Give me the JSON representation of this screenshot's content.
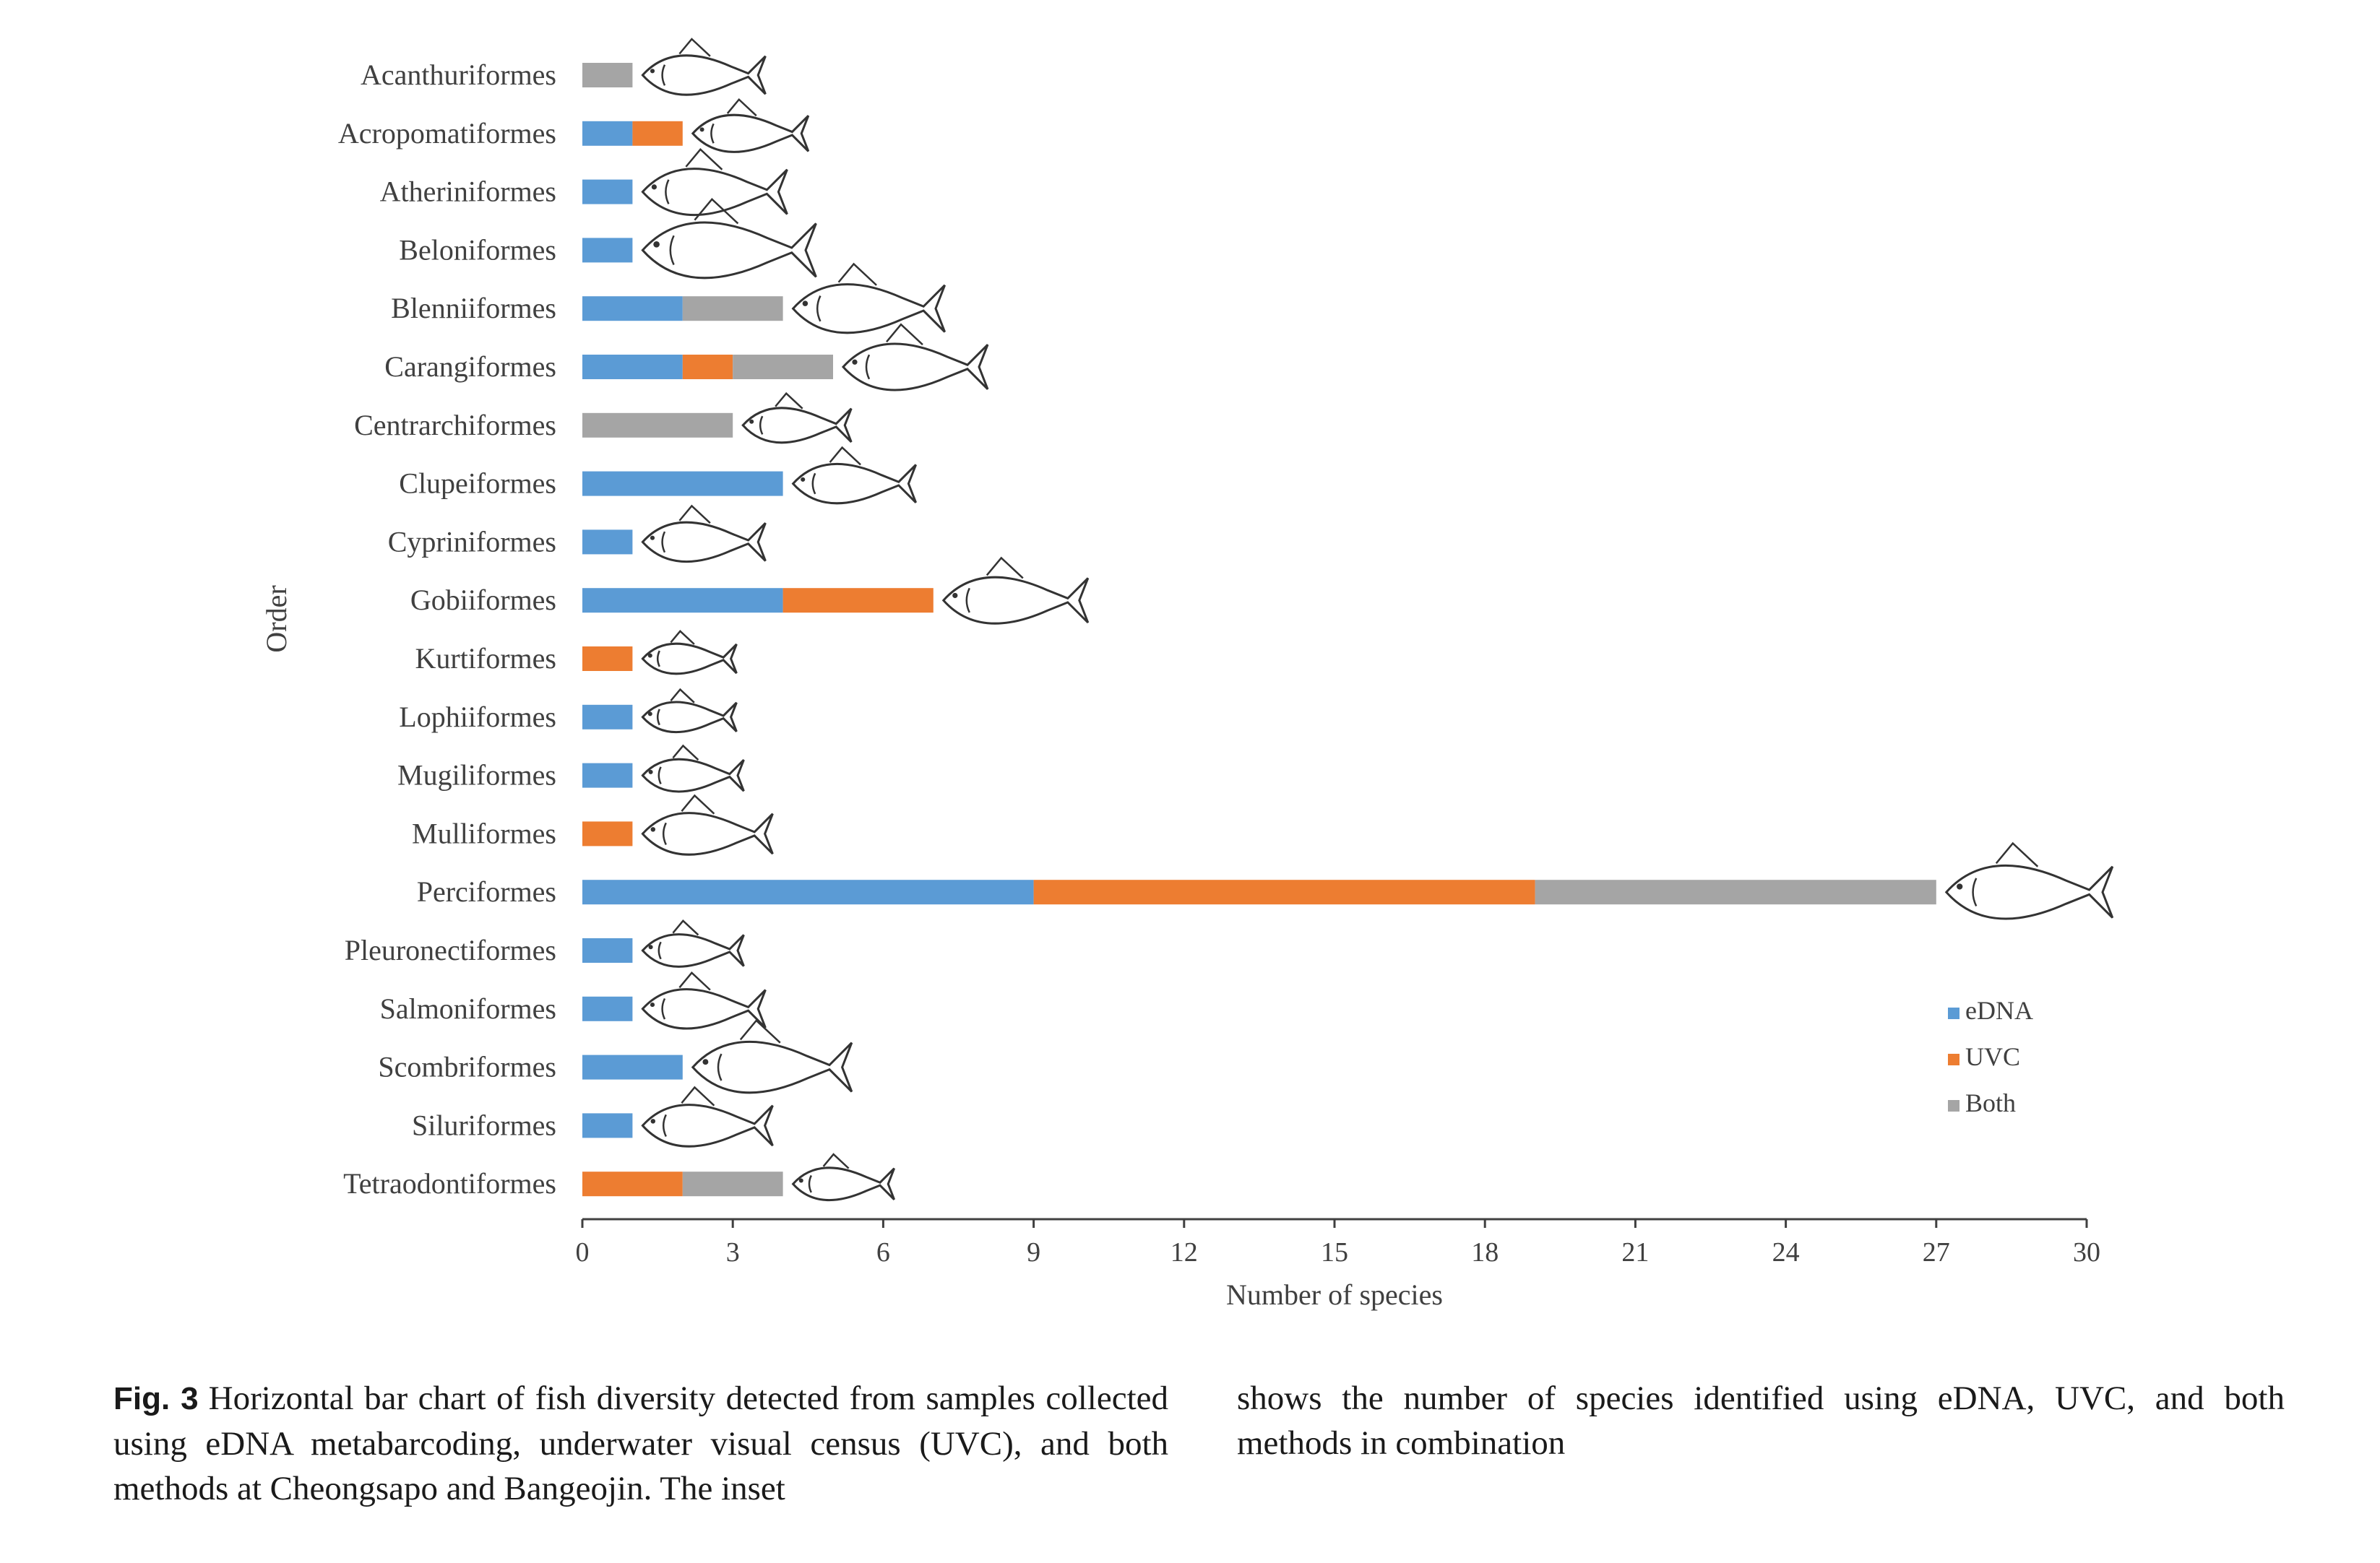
{
  "chart_data": {
    "type": "bar",
    "orientation": "horizontal",
    "stacked": true,
    "xlabel": "Number of species",
    "ylabel": "Order",
    "xlim": [
      0,
      30
    ],
    "xticks": [
      0,
      3,
      6,
      9,
      12,
      15,
      18,
      21,
      24,
      27,
      30
    ],
    "grid": false,
    "legend_position": "bottom-right",
    "categories": [
      "Acanthuriformes",
      "Acropomatiformes",
      "Atheriniformes",
      "Beloniformes",
      "Blenniiformes",
      "Carangiformes",
      "Centrarchiformes",
      "Clupeiformes",
      "Cypriniformes",
      "Gobiiformes",
      "Kurtiformes",
      "Lophiiformes",
      "Mugiliformes",
      "Mulliformes",
      "Perciformes",
      "Pleuronectiformes",
      "Salmoniformes",
      "Scombriformes",
      "Siluriformes",
      "Tetraodontiformes"
    ],
    "series": [
      {
        "name": "eDNA",
        "color": "#5b9bd5",
        "values": [
          0,
          1,
          1,
          1,
          2,
          2,
          0,
          4,
          1,
          4,
          0,
          1,
          1,
          0,
          9,
          1,
          1,
          2,
          1,
          0
        ]
      },
      {
        "name": "UVC",
        "color": "#ed7d31",
        "values": [
          0,
          1,
          0,
          0,
          0,
          1,
          0,
          0,
          0,
          3,
          1,
          0,
          0,
          1,
          10,
          0,
          0,
          0,
          0,
          2
        ]
      },
      {
        "name": "Both",
        "color": "#a5a5a5",
        "values": [
          1,
          0,
          0,
          0,
          2,
          2,
          3,
          0,
          0,
          0,
          0,
          0,
          0,
          0,
          8,
          0,
          0,
          0,
          0,
          2
        ]
      }
    ],
    "illustrations": "fish-silhouette-icon"
  },
  "caption": {
    "label": "Fig. 3",
    "text_left": "Horizontal bar chart of fish diversity detected from samples collected using eDNA metabarcoding, underwater visual census (UVC), and both methods at Cheongsapo and Bangeojin. The inset",
    "text_right": "shows the number of species identified using eDNA, UVC, and both methods in combination"
  }
}
